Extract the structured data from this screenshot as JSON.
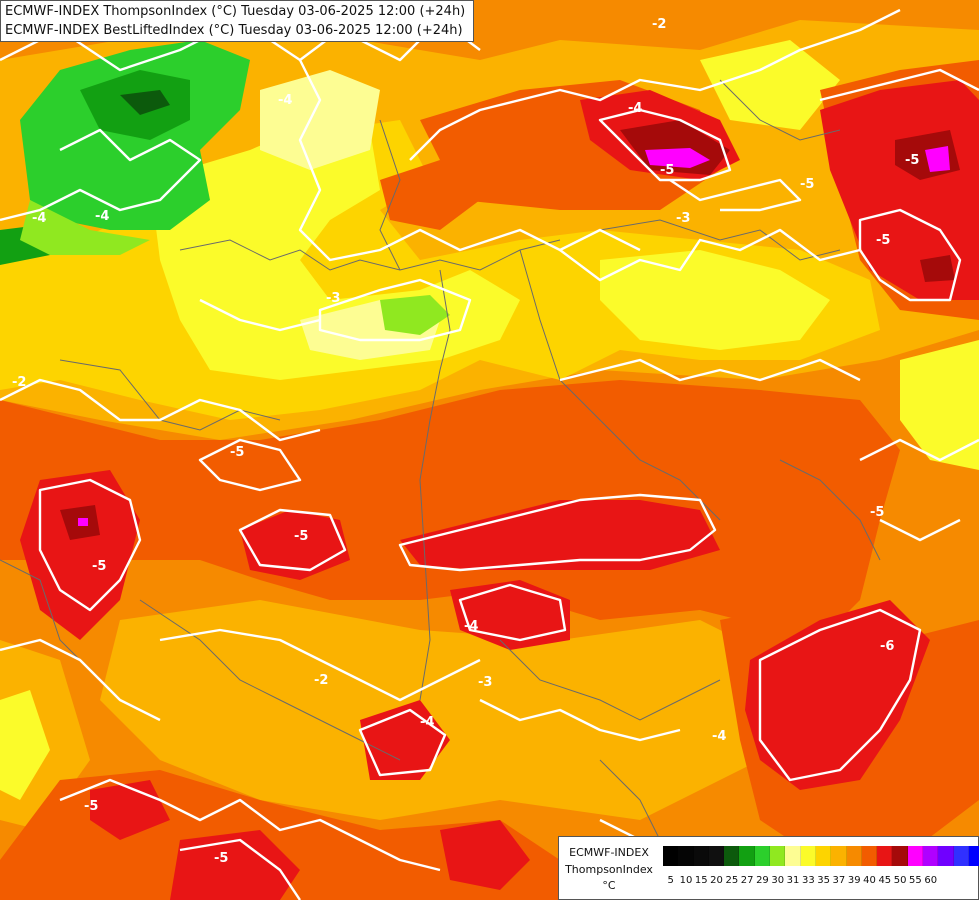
{
  "title": {
    "line1": "ECMWF-INDEX ThompsonIndex (°C) Tuesday 03-06-2025 12:00 (+24h)",
    "line2": "ECMWF-INDEX BestLiftedIndex (°C) Tuesday 03-06-2025 12:00 (+24h)"
  },
  "legend": {
    "line1": "ECMWF-INDEX",
    "line2": "ThompsonIndex",
    "line3": "°C",
    "colors": [
      "#000000",
      "#050505",
      "#0a0a0a",
      "#101010",
      "#0c5a0c",
      "#12a012",
      "#2ccf2c",
      "#90e820",
      "#fdfd93",
      "#fbfb2a",
      "#fdd400",
      "#fbb200",
      "#f68a00",
      "#f25c00",
      "#e81515",
      "#a50a0a",
      "#ff00ff",
      "#b000ff",
      "#7000ff",
      "#3030ff",
      "#0000ff"
    ],
    "ticks": [
      "5",
      "10",
      "15",
      "20",
      "25",
      "27",
      "29",
      "30",
      "31",
      "33",
      "35",
      "37",
      "39",
      "40",
      "45",
      "50",
      "55",
      "60",
      "",
      "",
      ""
    ]
  },
  "contour_labels": [
    "-4",
    "-5",
    "-4",
    "-2",
    "-5",
    "-5",
    "-4",
    "-3",
    "-4",
    "-2",
    "-5",
    "-3",
    "-5",
    "-5",
    "-4",
    "-6",
    "-5",
    "-4",
    "-5",
    "-5",
    "-3",
    "-2",
    "-4",
    "-5"
  ]
}
